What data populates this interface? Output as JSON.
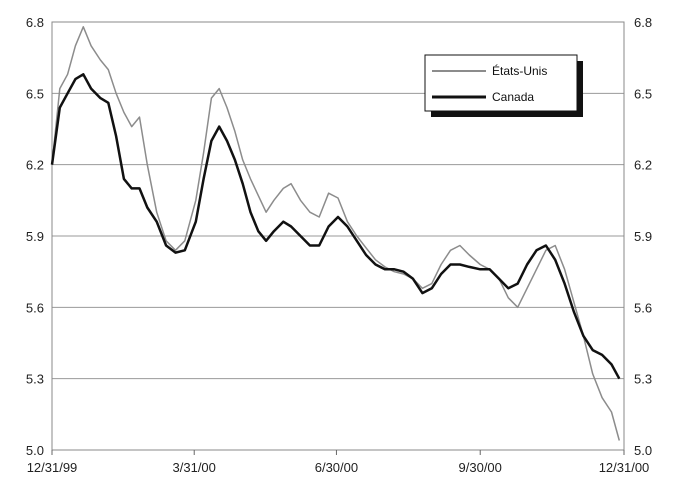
{
  "chart_data": {
    "type": "line",
    "title": "",
    "xlabel": "",
    "ylabel": "",
    "ylim": [
      5.0,
      6.8
    ],
    "yticks": [
      "6.8",
      "6.5",
      "6.2",
      "5.9",
      "5.6",
      "5.3",
      "5.0"
    ],
    "ytick_values": [
      6.8,
      6.5,
      6.2,
      5.9,
      5.6,
      5.3,
      5.0
    ],
    "xticks": [
      "12/31/99",
      "3/31/00",
      "6/30/00",
      "9/30/00",
      "12/31/00"
    ],
    "xtick_values": [
      "1999-12-31",
      "2000-03-31",
      "2000-06-30",
      "2000-09-30",
      "2000-12-31"
    ],
    "grid": "horizontal",
    "legend_position": "top-right",
    "series": [
      {
        "name": "États-Unis",
        "color": "#8c8c8c",
        "x": [
          "1999-12-31",
          "2000-01-05",
          "2000-01-10",
          "2000-01-15",
          "2000-01-20",
          "2000-01-25",
          "2000-01-31",
          "2000-02-05",
          "2000-02-10",
          "2000-02-15",
          "2000-02-20",
          "2000-02-25",
          "2000-03-01",
          "2000-03-07",
          "2000-03-13",
          "2000-03-19",
          "2000-03-25",
          "2000-04-01",
          "2000-04-06",
          "2000-04-11",
          "2000-04-16",
          "2000-04-21",
          "2000-04-26",
          "2000-05-01",
          "2000-05-06",
          "2000-05-11",
          "2000-05-16",
          "2000-05-21",
          "2000-05-27",
          "2000-06-01",
          "2000-06-07",
          "2000-06-13",
          "2000-06-19",
          "2000-06-25",
          "2000-07-01",
          "2000-07-07",
          "2000-07-13",
          "2000-07-19",
          "2000-07-25",
          "2000-07-31",
          "2000-08-06",
          "2000-08-12",
          "2000-08-18",
          "2000-08-24",
          "2000-08-30",
          "2000-09-05",
          "2000-09-11",
          "2000-09-17",
          "2000-09-23",
          "2000-09-30",
          "2000-10-06",
          "2000-10-12",
          "2000-10-18",
          "2000-10-24",
          "2000-10-30",
          "2000-11-05",
          "2000-11-11",
          "2000-11-17",
          "2000-11-23",
          "2000-11-29",
          "2000-12-05",
          "2000-12-11",
          "2000-12-17",
          "2000-12-23",
          "2000-12-28"
        ],
        "values": [
          6.2,
          6.52,
          6.58,
          6.7,
          6.78,
          6.7,
          6.64,
          6.6,
          6.5,
          6.42,
          6.36,
          6.4,
          6.2,
          6.0,
          5.88,
          5.84,
          5.88,
          6.05,
          6.25,
          6.48,
          6.52,
          6.44,
          6.34,
          6.22,
          6.14,
          6.07,
          6.0,
          6.05,
          6.1,
          6.12,
          6.05,
          6.0,
          5.98,
          6.08,
          6.06,
          5.96,
          5.9,
          5.85,
          5.8,
          5.77,
          5.75,
          5.74,
          5.72,
          5.68,
          5.7,
          5.78,
          5.84,
          5.86,
          5.82,
          5.78,
          5.76,
          5.72,
          5.64,
          5.6,
          5.68,
          5.76,
          5.84,
          5.86,
          5.76,
          5.62,
          5.48,
          5.32,
          5.22,
          5.16,
          5.04
        ]
      },
      {
        "name": "Canada",
        "color": "#111111",
        "x": [
          "1999-12-31",
          "2000-01-05",
          "2000-01-10",
          "2000-01-15",
          "2000-01-20",
          "2000-01-25",
          "2000-01-31",
          "2000-02-05",
          "2000-02-10",
          "2000-02-15",
          "2000-02-20",
          "2000-02-25",
          "2000-03-01",
          "2000-03-07",
          "2000-03-13",
          "2000-03-19",
          "2000-03-25",
          "2000-04-01",
          "2000-04-06",
          "2000-04-11",
          "2000-04-16",
          "2000-04-21",
          "2000-04-26",
          "2000-05-01",
          "2000-05-06",
          "2000-05-11",
          "2000-05-16",
          "2000-05-21",
          "2000-05-27",
          "2000-06-01",
          "2000-06-07",
          "2000-06-13",
          "2000-06-19",
          "2000-06-25",
          "2000-07-01",
          "2000-07-07",
          "2000-07-13",
          "2000-07-19",
          "2000-07-25",
          "2000-07-31",
          "2000-08-06",
          "2000-08-12",
          "2000-08-18",
          "2000-08-24",
          "2000-08-30",
          "2000-09-05",
          "2000-09-11",
          "2000-09-17",
          "2000-09-23",
          "2000-09-30",
          "2000-10-06",
          "2000-10-12",
          "2000-10-18",
          "2000-10-24",
          "2000-10-30",
          "2000-11-05",
          "2000-11-11",
          "2000-11-17",
          "2000-11-23",
          "2000-11-29",
          "2000-12-05",
          "2000-12-11",
          "2000-12-17",
          "2000-12-23",
          "2000-12-28"
        ],
        "values": [
          6.2,
          6.44,
          6.5,
          6.56,
          6.58,
          6.52,
          6.48,
          6.46,
          6.32,
          6.14,
          6.1,
          6.1,
          6.02,
          5.96,
          5.86,
          5.83,
          5.84,
          5.96,
          6.14,
          6.3,
          6.36,
          6.3,
          6.22,
          6.12,
          6.0,
          5.92,
          5.88,
          5.92,
          5.96,
          5.94,
          5.9,
          5.86,
          5.86,
          5.94,
          5.98,
          5.94,
          5.88,
          5.82,
          5.78,
          5.76,
          5.76,
          5.75,
          5.72,
          5.66,
          5.68,
          5.74,
          5.78,
          5.78,
          5.77,
          5.76,
          5.76,
          5.72,
          5.68,
          5.7,
          5.78,
          5.84,
          5.86,
          5.8,
          5.7,
          5.58,
          5.48,
          5.42,
          5.4,
          5.36,
          5.3
        ]
      }
    ]
  }
}
